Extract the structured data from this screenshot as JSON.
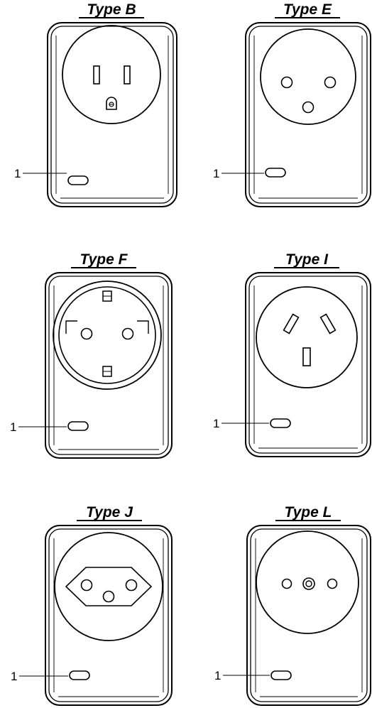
{
  "adapters": [
    {
      "id": "type-b",
      "title": "Type B",
      "callout": "1",
      "socket": "B"
    },
    {
      "id": "type-e",
      "title": "Type E",
      "callout": "1",
      "socket": "E"
    },
    {
      "id": "type-f",
      "title": "Type F",
      "callout": "1",
      "socket": "F"
    },
    {
      "id": "type-i",
      "title": "Type I",
      "callout": "1",
      "socket": "I"
    },
    {
      "id": "type-j",
      "title": "Type J",
      "callout": "1",
      "socket": "J"
    },
    {
      "id": "type-l",
      "title": "Type L",
      "callout": "1",
      "socket": "L"
    }
  ]
}
